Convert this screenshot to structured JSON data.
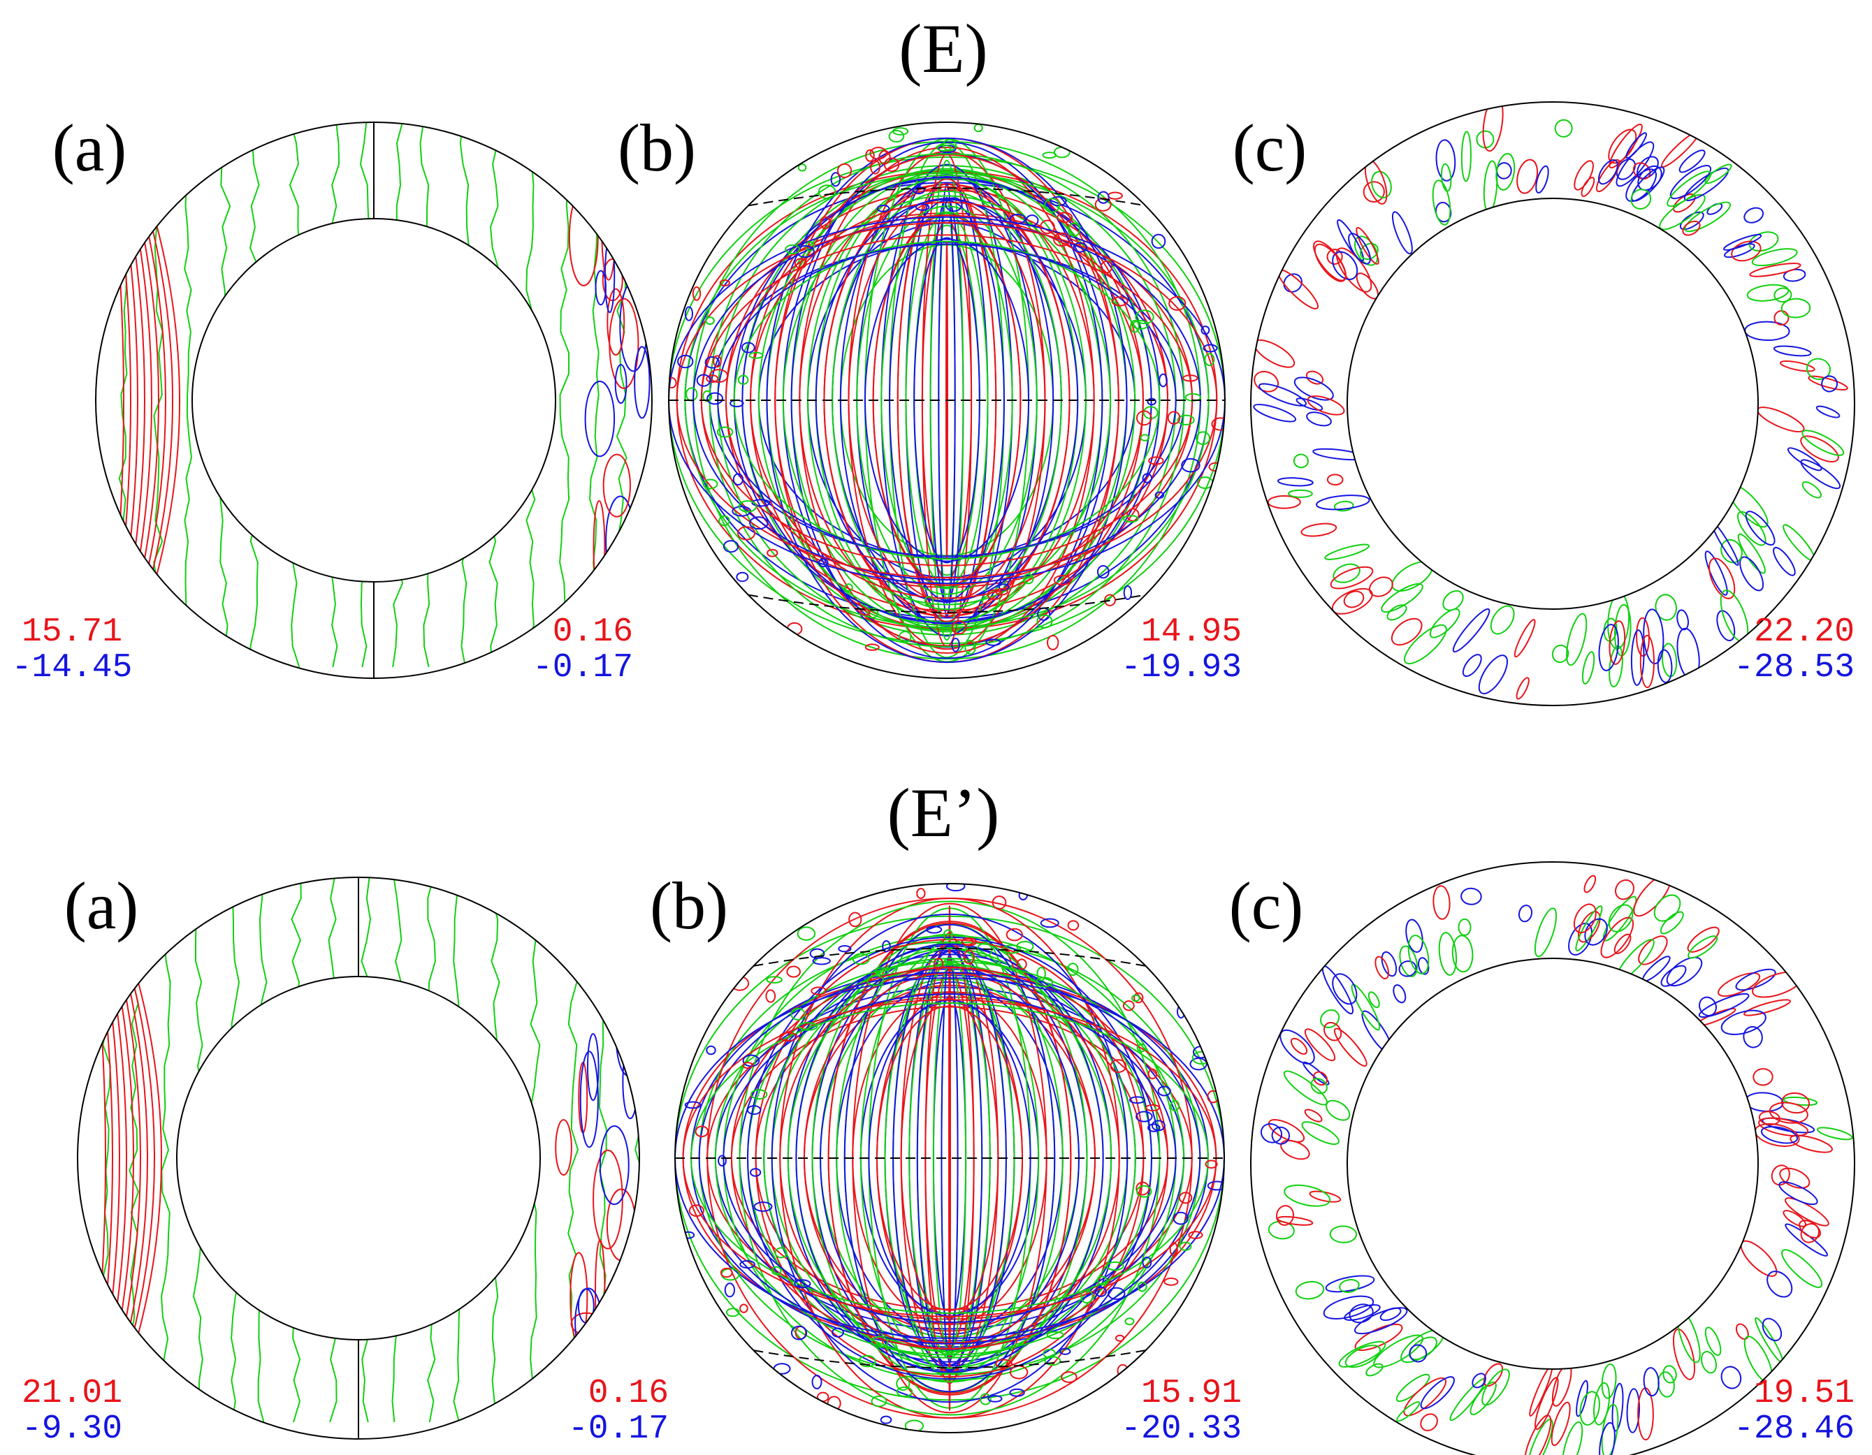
{
  "figures": [
    {
      "title": "(E)",
      "panels": [
        {
          "label": "(a)",
          "left": {
            "max": "15.71",
            "min": "-14.45"
          },
          "right": {
            "max": "0.16",
            "min": "-0.17"
          }
        },
        {
          "label": "(b)",
          "right": {
            "max": "14.95",
            "min": "-19.93"
          }
        },
        {
          "label": "(c)",
          "right": {
            "max": "22.20",
            "min": "-28.53"
          }
        }
      ]
    },
    {
      "title": "(E’)",
      "panels": [
        {
          "label": "(a)",
          "left": {
            "max": "21.01",
            "min": "-9.30"
          },
          "right": {
            "max": "0.16",
            "min": "-0.17"
          }
        },
        {
          "label": "(b)",
          "right": {
            "max": "15.91",
            "min": "-20.33"
          }
        },
        {
          "label": "(c)",
          "right": {
            "max": "19.51",
            "min": "-28.46"
          }
        }
      ]
    }
  ]
}
